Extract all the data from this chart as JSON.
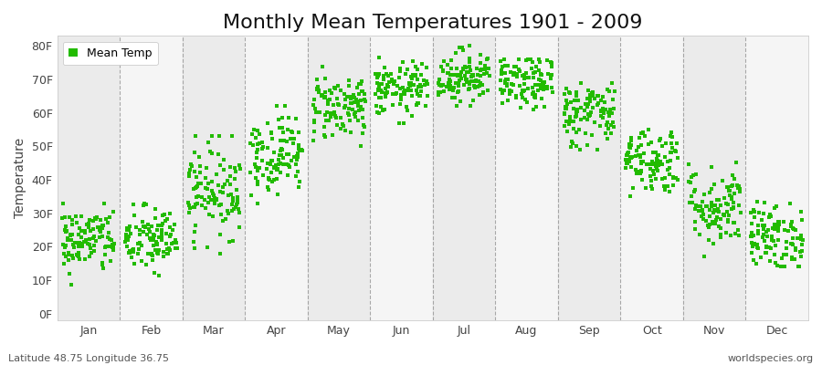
{
  "title": "Monthly Mean Temperatures 1901 - 2009",
  "ylabel": "Temperature",
  "xlabel_labels": [
    "Jan",
    "Feb",
    "Mar",
    "Apr",
    "May",
    "Jun",
    "Jul",
    "Aug",
    "Sep",
    "Oct",
    "Nov",
    "Dec"
  ],
  "ytick_labels": [
    "0F",
    "10F",
    "20F",
    "30F",
    "40F",
    "50F",
    "60F",
    "70F",
    "80F"
  ],
  "ytick_values": [
    0,
    10,
    20,
    30,
    40,
    50,
    60,
    70,
    80
  ],
  "ylim": [
    -2,
    83
  ],
  "xlim": [
    0,
    12
  ],
  "legend_label": "Mean Temp",
  "dot_color": "#22bb00",
  "dot_size": 6,
  "background_color": "#ffffff",
  "band_colors": [
    "#ebebeb",
    "#f5f5f5"
  ],
  "grid_color": "#888888",
  "footer_left": "Latitude 48.75 Longitude 36.75",
  "footer_right": "worldspecies.org",
  "month_means": [
    22,
    22,
    37,
    48,
    62,
    67,
    71,
    69,
    60,
    46,
    32,
    23
  ],
  "month_stds": [
    5,
    5,
    7,
    6,
    5,
    4,
    4,
    4,
    5,
    5,
    6,
    5
  ],
  "month_mins": [
    3,
    5,
    18,
    33,
    50,
    57,
    62,
    60,
    49,
    33,
    17,
    14
  ],
  "month_maxs": [
    33,
    33,
    53,
    62,
    76,
    77,
    80,
    76,
    70,
    61,
    52,
    38
  ],
  "n_years": 109,
  "seed": 42,
  "title_fontsize": 16,
  "axis_fontsize": 10,
  "tick_fontsize": 9,
  "footer_fontsize": 8,
  "legend_fontsize": 9
}
